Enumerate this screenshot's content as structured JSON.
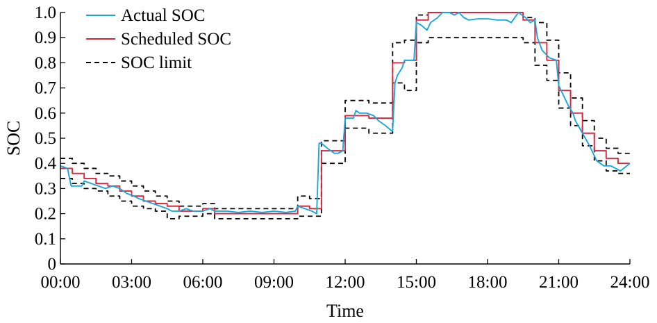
{
  "chart_data": {
    "type": "line",
    "title": "",
    "xlabel": "Time",
    "ylabel": "SOC",
    "xlim": [
      0,
      24
    ],
    "ylim": [
      0,
      1.0
    ],
    "grid": false,
    "legend_position": "top-left",
    "x_ticks": [
      {
        "value": 0,
        "label": "00:00"
      },
      {
        "value": 3,
        "label": "03:00"
      },
      {
        "value": 6,
        "label": "06:00"
      },
      {
        "value": 9,
        "label": "09:00"
      },
      {
        "value": 12,
        "label": "12:00"
      },
      {
        "value": 15,
        "label": "15:00"
      },
      {
        "value": 18,
        "label": "18:00"
      },
      {
        "value": 21,
        "label": "21:00"
      },
      {
        "value": 24,
        "label": "24:00"
      }
    ],
    "y_ticks": [
      {
        "value": 0,
        "label": "0"
      },
      {
        "value": 0.1,
        "label": "0.1"
      },
      {
        "value": 0.2,
        "label": "0.2"
      },
      {
        "value": 0.3,
        "label": "0.3"
      },
      {
        "value": 0.4,
        "label": "0.4"
      },
      {
        "value": 0.5,
        "label": "0.5"
      },
      {
        "value": 0.6,
        "label": "0.6"
      },
      {
        "value": 0.7,
        "label": "0.7"
      },
      {
        "value": 0.8,
        "label": "0.8"
      },
      {
        "value": 0.9,
        "label": "0.9"
      },
      {
        "value": 1.0,
        "label": "1.0"
      }
    ],
    "series": [
      {
        "name": "Actual SOC",
        "color": "#1AA7D8",
        "style": "solid",
        "x": [
          0,
          0.3,
          0.45,
          0.9,
          1.0,
          1.3,
          1.6,
          1.9,
          2.2,
          2.5,
          2.8,
          3.1,
          3.3,
          3.6,
          3.9,
          4.2,
          4.5,
          4.7,
          5.0,
          5.3,
          5.6,
          6.0,
          6.3,
          6.5,
          7.0,
          7.5,
          8.0,
          8.5,
          9.0,
          9.5,
          9.9,
          10.0,
          10.3,
          10.6,
          10.8,
          10.9,
          11.0,
          11.25,
          11.4,
          11.55,
          11.7,
          11.9,
          12.0,
          12.1,
          12.35,
          12.45,
          12.6,
          12.9,
          13.2,
          13.4,
          13.7,
          13.95,
          14.0,
          14.1,
          14.2,
          14.4,
          14.5,
          14.9,
          15.0,
          15.2,
          15.45,
          15.6,
          15.9,
          16.1,
          16.4,
          16.6,
          16.8,
          17.0,
          17.2,
          17.6,
          18.0,
          18.4,
          18.8,
          19.0,
          19.3,
          19.6,
          19.8,
          20.0,
          20.1,
          20.3,
          20.6,
          20.9,
          21.0,
          21.2,
          21.4,
          21.6,
          21.7,
          22.0,
          22.3,
          22.6,
          22.9,
          23.2,
          23.6,
          24.0
        ],
        "y": [
          0.39,
          0.38,
          0.31,
          0.31,
          0.33,
          0.32,
          0.31,
          0.3,
          0.31,
          0.3,
          0.28,
          0.27,
          0.26,
          0.25,
          0.24,
          0.23,
          0.22,
          0.21,
          0.21,
          0.22,
          0.21,
          0.21,
          0.22,
          0.21,
          0.21,
          0.205,
          0.21,
          0.205,
          0.21,
          0.205,
          0.21,
          0.23,
          0.22,
          0.21,
          0.2,
          0.48,
          0.48,
          0.46,
          0.45,
          0.44,
          0.44,
          0.45,
          0.58,
          0.58,
          0.58,
          0.61,
          0.6,
          0.6,
          0.59,
          0.57,
          0.55,
          0.53,
          0.53,
          0.72,
          0.75,
          0.78,
          0.81,
          0.81,
          0.96,
          0.95,
          0.93,
          0.96,
          0.98,
          1.0,
          1.0,
          0.99,
          1.0,
          0.98,
          0.97,
          0.975,
          0.975,
          0.97,
          0.97,
          0.96,
          1.0,
          0.98,
          0.96,
          0.97,
          0.9,
          0.85,
          0.82,
          0.81,
          0.71,
          0.67,
          0.63,
          0.6,
          0.57,
          0.52,
          0.47,
          0.41,
          0.39,
          0.39,
          0.37,
          0.4
        ]
      },
      {
        "name": "Scheduled SOC",
        "color": "#D7263D",
        "style": "solid",
        "x": [
          0,
          0.5,
          0.5,
          1.0,
          1.0,
          1.5,
          1.5,
          2.0,
          2.0,
          2.5,
          2.5,
          3.0,
          3.0,
          3.5,
          3.5,
          4.0,
          4.0,
          4.5,
          4.5,
          5.0,
          5.0,
          6.0,
          6.0,
          6.5,
          6.5,
          7.5,
          7.5,
          9.0,
          9.0,
          10.0,
          10.0,
          10.5,
          10.5,
          11.0,
          11.0,
          12.0,
          12.0,
          13.0,
          13.0,
          14.0,
          14.0,
          14.5,
          14.5,
          15.0,
          15.0,
          15.5,
          15.5,
          16.0,
          16.0,
          19.5,
          19.5,
          20.0,
          20.0,
          20.5,
          20.5,
          21.0,
          21.0,
          21.5,
          21.5,
          22.0,
          22.0,
          22.5,
          22.5,
          23.0,
          23.0,
          23.5,
          23.5,
          24.0
        ],
        "y": [
          0.38,
          0.38,
          0.36,
          0.36,
          0.34,
          0.34,
          0.32,
          0.32,
          0.31,
          0.31,
          0.29,
          0.29,
          0.27,
          0.27,
          0.25,
          0.25,
          0.24,
          0.24,
          0.23,
          0.23,
          0.21,
          0.21,
          0.22,
          0.22,
          0.2,
          0.2,
          0.2,
          0.2,
          0.2,
          0.2,
          0.23,
          0.23,
          0.22,
          0.22,
          0.45,
          0.45,
          0.59,
          0.59,
          0.58,
          0.58,
          0.8,
          0.8,
          0.81,
          0.81,
          0.97,
          0.97,
          1.0,
          1.0,
          1.0,
          1.0,
          0.97,
          0.97,
          0.88,
          0.88,
          0.81,
          0.81,
          0.69,
          0.69,
          0.6,
          0.6,
          0.52,
          0.52,
          0.45,
          0.45,
          0.42,
          0.42,
          0.4,
          0.4
        ]
      },
      {
        "name": "SOC limit",
        "color": "#000000",
        "style": "dashed",
        "x": [
          0,
          0.5,
          0.5,
          1.0,
          1.0,
          1.5,
          1.5,
          2.0,
          2.0,
          2.5,
          2.5,
          3.0,
          3.0,
          3.5,
          3.5,
          4.0,
          4.0,
          4.5,
          4.5,
          5.0,
          5.0,
          6.0,
          6.0,
          6.5,
          6.5,
          7.5,
          7.5,
          9.0,
          9.0,
          10.0,
          10.0,
          10.5,
          10.5,
          11.0,
          11.0,
          12.0,
          12.0,
          13.0,
          13.0,
          14.0,
          14.0,
          14.5,
          14.5,
          15.0,
          15.0,
          15.5,
          15.5,
          16.0,
          16.0,
          19.5,
          19.5,
          20.0,
          20.0,
          20.5,
          20.5,
          21.0,
          21.0,
          21.5,
          21.5,
          22.0,
          22.0,
          22.5,
          22.5,
          23.0,
          23.0,
          23.5,
          23.5,
          24.0
        ],
        "y": [
          0.42,
          0.42,
          0.4,
          0.4,
          0.38,
          0.38,
          0.36,
          0.36,
          0.35,
          0.35,
          0.33,
          0.33,
          0.31,
          0.31,
          0.29,
          0.29,
          0.27,
          0.27,
          0.25,
          0.25,
          0.23,
          0.23,
          0.24,
          0.24,
          0.22,
          0.22,
          0.22,
          0.22,
          0.22,
          0.22,
          0.27,
          0.27,
          0.26,
          0.26,
          0.49,
          0.49,
          0.65,
          0.65,
          0.64,
          0.64,
          0.88,
          0.88,
          0.89,
          0.89,
          0.99,
          0.99,
          1.0,
          1.0,
          1.0,
          1.0,
          0.98,
          0.98,
          0.96,
          0.96,
          0.89,
          0.89,
          0.76,
          0.76,
          0.66,
          0.66,
          0.57,
          0.57,
          0.5,
          0.5,
          0.46,
          0.46,
          0.44,
          0.44
        ]
      },
      {
        "name": "",
        "color": "#000000",
        "style": "dashed",
        "x": [
          0,
          0.5,
          0.5,
          1.0,
          1.0,
          1.5,
          1.5,
          2.0,
          2.0,
          2.5,
          2.5,
          3.0,
          3.0,
          3.5,
          3.5,
          4.0,
          4.0,
          4.5,
          4.5,
          5.0,
          5.0,
          6.0,
          6.0,
          6.5,
          6.5,
          7.5,
          7.5,
          9.0,
          9.0,
          10.0,
          10.0,
          10.5,
          10.5,
          11.0,
          11.0,
          12.0,
          12.0,
          13.0,
          13.0,
          14.0,
          14.0,
          14.5,
          14.5,
          15.0,
          15.0,
          15.5,
          15.5,
          16.0,
          16.0,
          19.5,
          19.5,
          20.0,
          20.0,
          20.5,
          20.5,
          21.0,
          21.0,
          21.5,
          21.5,
          22.0,
          22.0,
          22.5,
          22.5,
          23.0,
          23.0,
          23.5,
          23.5,
          24.0
        ],
        "y": [
          0.34,
          0.34,
          0.32,
          0.32,
          0.3,
          0.3,
          0.29,
          0.29,
          0.27,
          0.27,
          0.25,
          0.25,
          0.23,
          0.23,
          0.22,
          0.22,
          0.21,
          0.21,
          0.18,
          0.18,
          0.19,
          0.19,
          0.2,
          0.2,
          0.18,
          0.18,
          0.18,
          0.18,
          0.18,
          0.18,
          0.19,
          0.19,
          0.19,
          0.19,
          0.4,
          0.4,
          0.54,
          0.54,
          0.52,
          0.52,
          0.72,
          0.72,
          0.69,
          0.69,
          0.88,
          0.88,
          0.9,
          0.9,
          0.9,
          0.9,
          0.88,
          0.88,
          0.79,
          0.79,
          0.73,
          0.73,
          0.62,
          0.62,
          0.55,
          0.55,
          0.47,
          0.47,
          0.41,
          0.41,
          0.37,
          0.37,
          0.36,
          0.36
        ]
      }
    ]
  }
}
